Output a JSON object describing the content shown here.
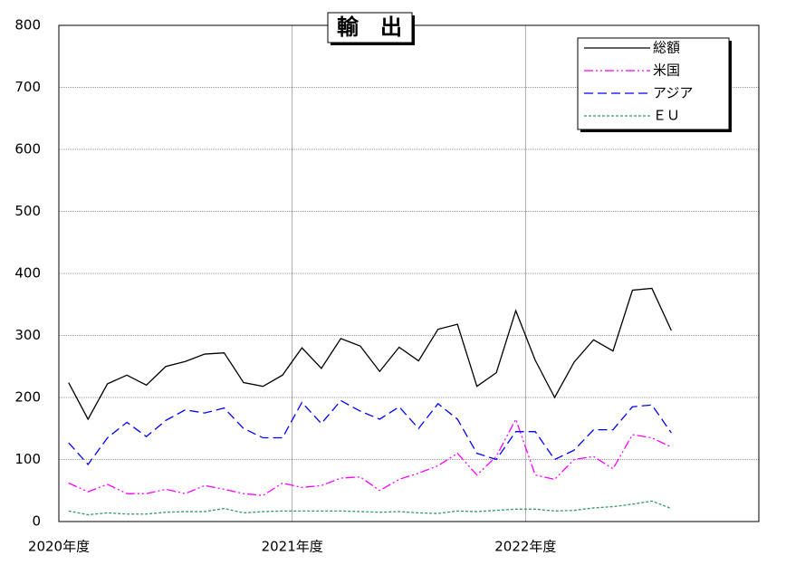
{
  "chart_data": {
    "type": "line",
    "title": "輸　出",
    "x": [
      0.5,
      1.5,
      2.5,
      3.5,
      4.5,
      5.5,
      6.5,
      7.5,
      8.5,
      9.5,
      10.5,
      11.5,
      12.5,
      13.5,
      14.5,
      15.5,
      16.5,
      17.5,
      18.5,
      19.5,
      20.5,
      21.5,
      22.5,
      23.5,
      24.5,
      25.5,
      26.5,
      27.5,
      28.5,
      29.5,
      30.5,
      31.5
    ],
    "xlim": [
      0,
      36
    ],
    "xticks": [
      {
        "value": 0,
        "label": "2020年度"
      },
      {
        "value": 12,
        "label": "2021年度"
      },
      {
        "value": 24,
        "label": "2022年度"
      }
    ],
    "ylim": [
      0,
      800
    ],
    "yticks": [
      0,
      100,
      200,
      300,
      400,
      500,
      600,
      700,
      800
    ],
    "grid": true,
    "legend": "upper right",
    "series": [
      {
        "name": "総額",
        "color": "#000000",
        "dash": "none",
        "values": [
          224,
          165,
          222,
          236,
          220,
          250,
          258,
          270,
          272,
          224,
          218,
          236,
          280,
          247,
          295,
          283,
          242,
          281,
          259,
          310,
          318,
          218,
          240,
          340,
          260,
          200,
          257,
          293,
          275,
          373,
          376,
          308
        ]
      },
      {
        "name": "米国",
        "color": "#ff00ff",
        "dash": "10 3 2 3 2 3",
        "values": [
          62,
          48,
          60,
          45,
          45,
          52,
          45,
          58,
          52,
          45,
          42,
          62,
          55,
          58,
          70,
          72,
          50,
          68,
          78,
          90,
          110,
          75,
          105,
          165,
          75,
          68,
          100,
          105,
          85,
          140,
          135,
          120
        ]
      },
      {
        "name": "アジア",
        "color": "#0000ff",
        "dash": "10 5",
        "values": [
          127,
          92,
          135,
          160,
          137,
          163,
          180,
          175,
          183,
          150,
          135,
          135,
          192,
          158,
          195,
          178,
          165,
          185,
          150,
          190,
          165,
          110,
          100,
          145,
          145,
          100,
          115,
          148,
          148,
          185,
          188,
          143
        ]
      },
      {
        "name": "ＥＵ",
        "color": "#339966",
        "dash": "3 2",
        "values": [
          17,
          11,
          14,
          12,
          12,
          15,
          16,
          16,
          21,
          14,
          16,
          17,
          17,
          17,
          17,
          16,
          15,
          16,
          14,
          13,
          17,
          16,
          18,
          20,
          20,
          17,
          18,
          22,
          24,
          28,
          33,
          21
        ]
      }
    ]
  }
}
